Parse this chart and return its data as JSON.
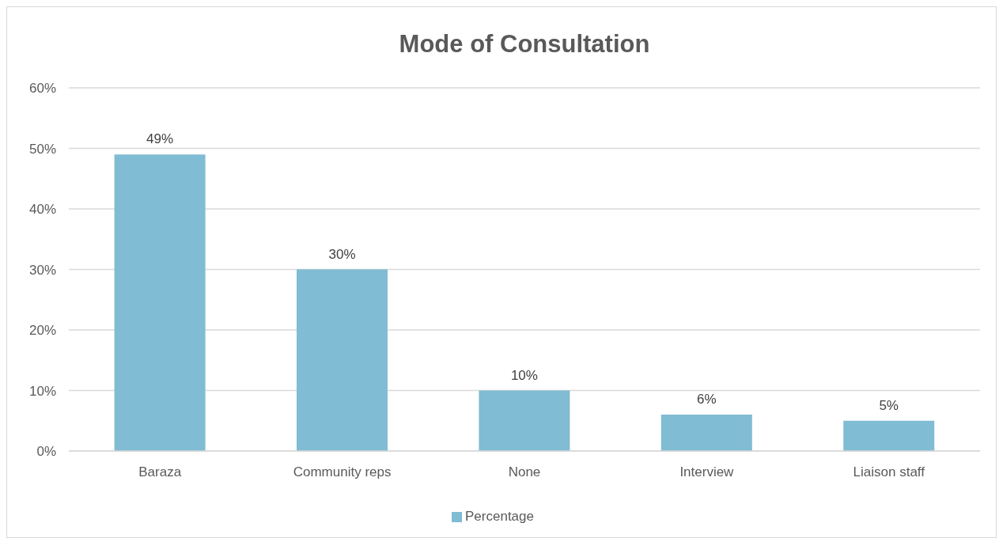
{
  "chart_data": {
    "type": "bar",
    "title": "Mode of Consultation",
    "categories": [
      "Baraza",
      "Community reps",
      "None",
      "Interview",
      "Liaison staff"
    ],
    "series": [
      {
        "name": "Percentage",
        "color": "#80bcd3",
        "values": [
          49,
          30,
          10,
          6,
          5
        ],
        "value_labels": [
          "49%",
          "30%",
          "10%",
          "6%",
          "5%"
        ]
      }
    ],
    "ylim": [
      0,
      60
    ],
    "yticks": [
      {
        "value": 0,
        "label": "0%"
      },
      {
        "value": 10,
        "label": "10%"
      },
      {
        "value": 20,
        "label": "20%"
      },
      {
        "value": 30,
        "label": "30%"
      },
      {
        "value": 40,
        "label": "40%"
      },
      {
        "value": 50,
        "label": "50%"
      },
      {
        "value": 60,
        "label": "60%"
      }
    ],
    "grid": "y",
    "legend": "bottom"
  }
}
